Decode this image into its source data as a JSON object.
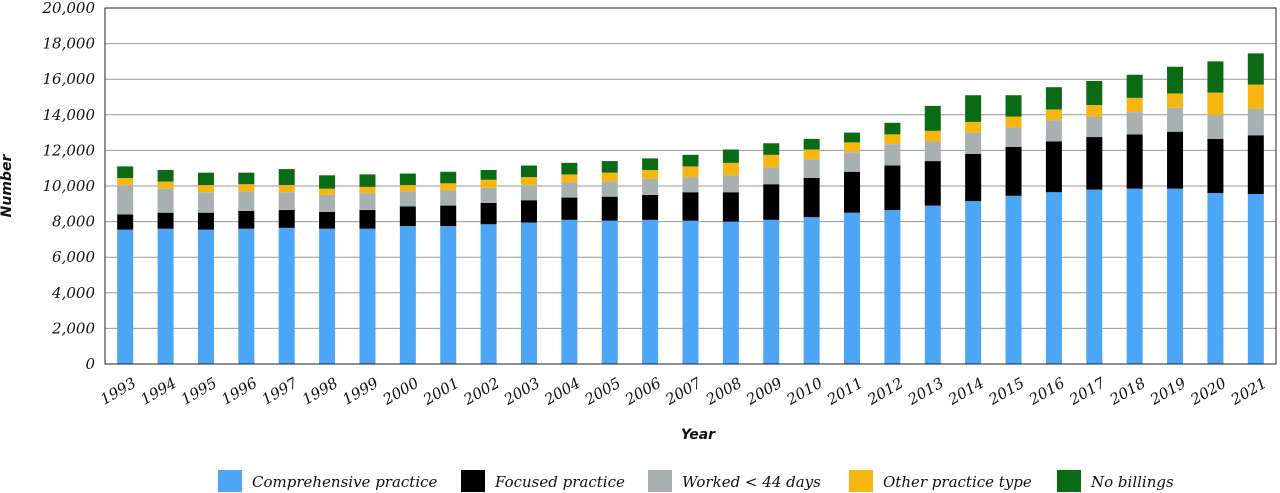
{
  "chart_data": {
    "type": "bar",
    "stacked": true,
    "title": "",
    "xlabel": "Year",
    "ylabel": "Number",
    "ylim": [
      0,
      20000
    ],
    "yticks": [
      0,
      2000,
      4000,
      6000,
      8000,
      10000,
      12000,
      14000,
      16000,
      18000,
      20000
    ],
    "ytick_labels": [
      "0",
      "2,000",
      "4,000",
      "6,000",
      "8,000",
      "10,000",
      "12,000",
      "14,000",
      "16,000",
      "18,000",
      "20,000"
    ],
    "grid": true,
    "legend_position": "bottom",
    "categories": [
      "1993",
      "1994",
      "1995",
      "1996",
      "1997",
      "1998",
      "1999",
      "2000",
      "2001",
      "2002",
      "2003",
      "2004",
      "2005",
      "2006",
      "2007",
      "2008",
      "2009",
      "2010",
      "2011",
      "2012",
      "2013",
      "2014",
      "2015",
      "2016",
      "2017",
      "2018",
      "2019",
      "2020",
      "2021"
    ],
    "series": [
      {
        "name": "Comprehensive practice",
        "color": "#4da6f5",
        "values": [
          7550,
          7600,
          7550,
          7600,
          7650,
          7600,
          7600,
          7750,
          7750,
          7850,
          7950,
          8100,
          8050,
          8100,
          8050,
          8000,
          8100,
          8250,
          8500,
          8650,
          8900,
          9150,
          9450,
          9650,
          9800,
          9850,
          9850,
          9600,
          9550
        ]
      },
      {
        "name": "Focused practice",
        "color": "#000000",
        "values": [
          850,
          900,
          950,
          1000,
          1000,
          950,
          1050,
          1100,
          1150,
          1200,
          1250,
          1250,
          1350,
          1400,
          1600,
          1650,
          2000,
          2200,
          2300,
          2500,
          2500,
          2650,
          2750,
          2850,
          2950,
          3050,
          3200,
          3050,
          3300
        ]
      },
      {
        "name": "Worked < 44 days",
        "color": "#a7b1b1",
        "values": [
          1650,
          1350,
          1150,
          1100,
          1000,
          950,
          950,
          850,
          850,
          850,
          850,
          850,
          850,
          900,
          850,
          950,
          950,
          1050,
          1100,
          1200,
          1100,
          1200,
          1100,
          1200,
          1150,
          1250,
          1350,
          1350,
          1500
        ]
      },
      {
        "name": "Other practice type",
        "color": "#f7b60f",
        "values": [
          400,
          400,
          400,
          400,
          400,
          350,
          350,
          350,
          400,
          450,
          450,
          450,
          500,
          500,
          600,
          700,
          700,
          550,
          550,
          550,
          600,
          600,
          600,
          600,
          650,
          800,
          800,
          1250,
          1350
        ]
      },
      {
        "name": "No billings",
        "color": "#0b6b14",
        "values": [
          650,
          650,
          700,
          650,
          900,
          750,
          700,
          650,
          650,
          550,
          650,
          650,
          650,
          650,
          650,
          750,
          650,
          600,
          550,
          650,
          1400,
          1500,
          1200,
          1250,
          1350,
          1300,
          1500,
          1750,
          1750
        ]
      }
    ]
  }
}
